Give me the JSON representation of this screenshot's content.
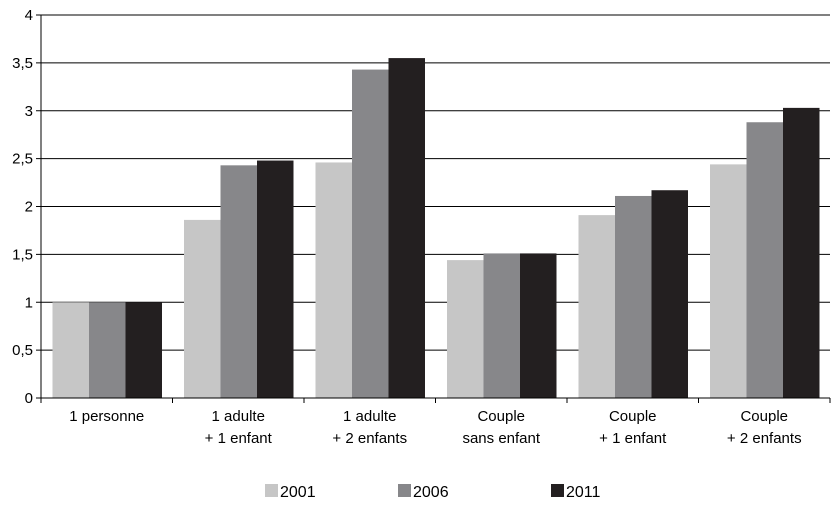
{
  "chart_data": {
    "type": "bar",
    "title": "",
    "xlabel": "",
    "ylabel": "",
    "ylim": [
      0,
      4
    ],
    "yticks": [
      0,
      0.5,
      1,
      1.5,
      2,
      2.5,
      3,
      3.5,
      4
    ],
    "ytick_labels": [
      "0",
      "0,5",
      "1",
      "1,5",
      "2",
      "2,5",
      "3",
      "3,5",
      "4"
    ],
    "grid": true,
    "legend_position": "bottom",
    "categories": [
      [
        "1 personne"
      ],
      [
        "1 adulte",
        "+ 1 enfant"
      ],
      [
        "1 adulte",
        "+ 2 enfants"
      ],
      [
        "Couple",
        "sans enfant"
      ],
      [
        "Couple",
        "+ 1 enfant"
      ],
      [
        "Couple",
        "+ 2 enfants"
      ]
    ],
    "series": [
      {
        "name": "2001",
        "color": "#c6c6c6",
        "values": [
          1.0,
          1.86,
          2.46,
          1.44,
          1.91,
          2.44
        ]
      },
      {
        "name": "2006",
        "color": "#87878a",
        "values": [
          1.0,
          2.43,
          3.43,
          1.51,
          2.11,
          2.88
        ]
      },
      {
        "name": "2011",
        "color": "#231f20",
        "values": [
          1.0,
          2.48,
          3.55,
          1.51,
          2.17,
          3.03
        ]
      }
    ]
  }
}
